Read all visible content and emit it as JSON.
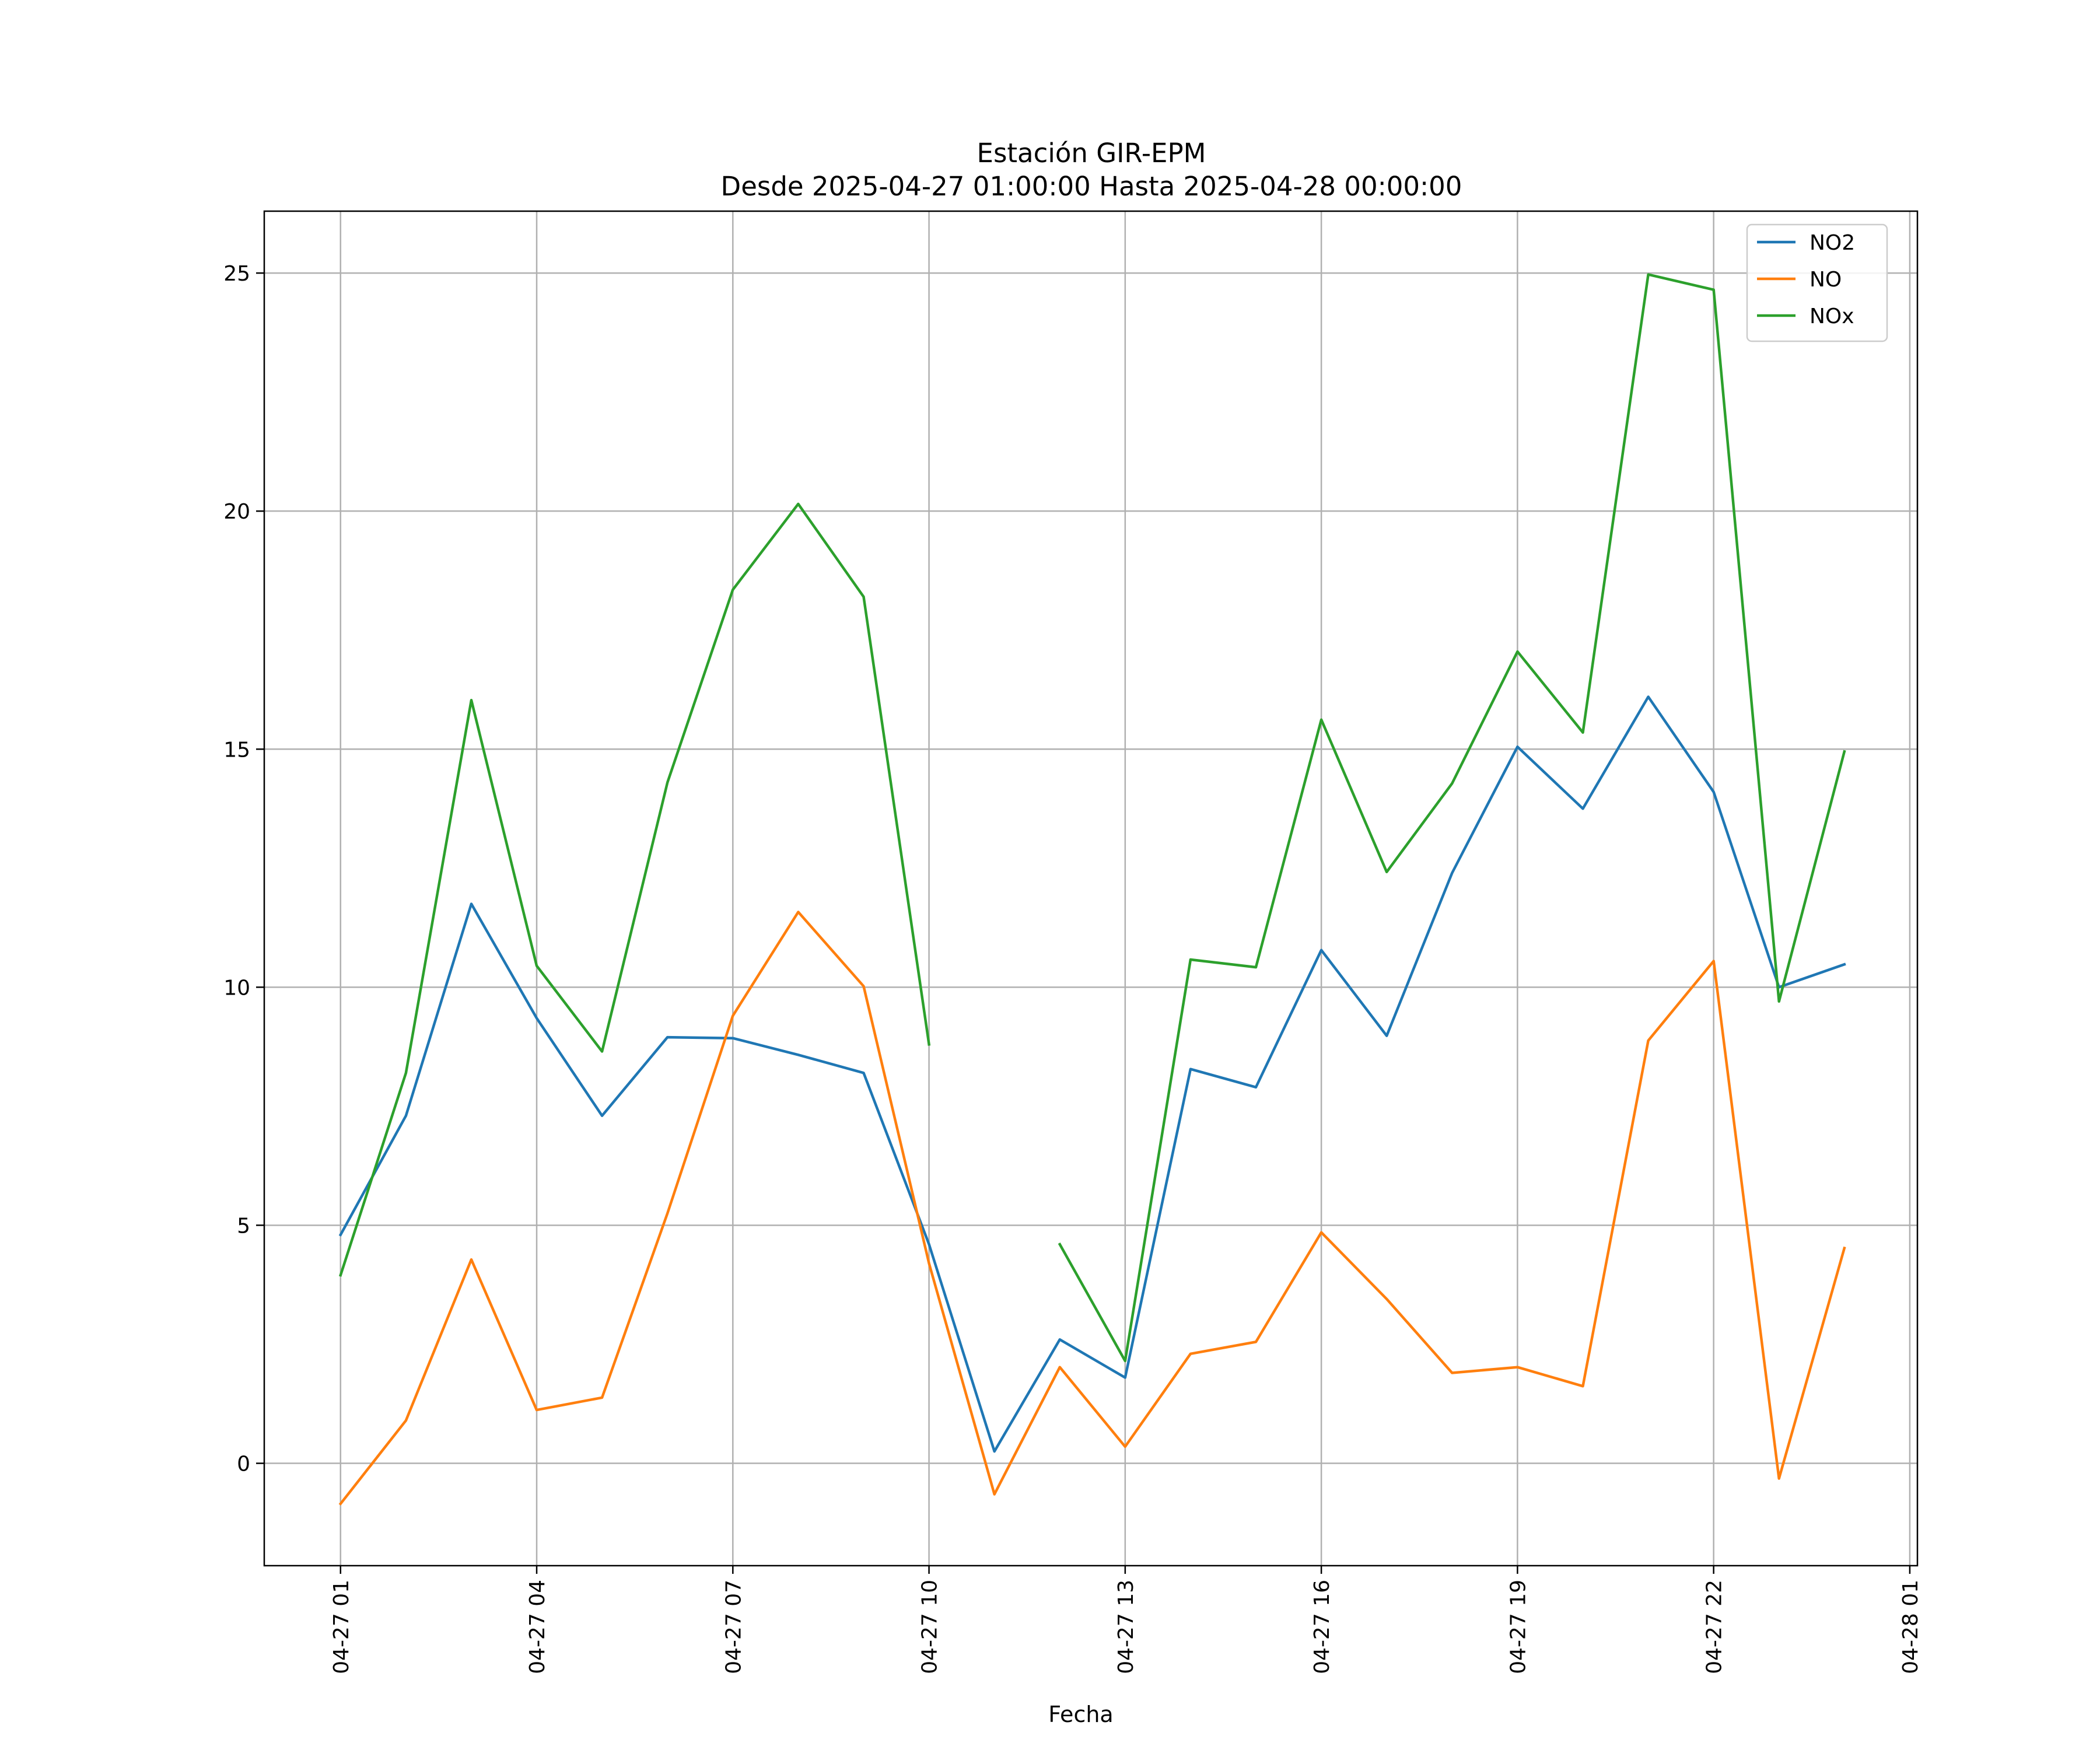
{
  "chart_data": {
    "type": "line",
    "title_line1": "Estación GIR-EPM",
    "title_line2": "Desde 2025-04-27 01:00:00 Hasta 2025-04-28 00:00:00",
    "xlabel": "Fecha",
    "ylabel": "",
    "x": [
      "2025-04-27 01:00",
      "2025-04-27 02:00",
      "2025-04-27 03:00",
      "2025-04-27 04:00",
      "2025-04-27 05:00",
      "2025-04-27 06:00",
      "2025-04-27 07:00",
      "2025-04-27 08:00",
      "2025-04-27 09:00",
      "2025-04-27 10:00",
      "2025-04-27 11:00",
      "2025-04-27 12:00",
      "2025-04-27 13:00",
      "2025-04-27 14:00",
      "2025-04-27 15:00",
      "2025-04-27 16:00",
      "2025-04-27 17:00",
      "2025-04-27 18:00",
      "2025-04-27 19:00",
      "2025-04-27 20:00",
      "2025-04-27 21:00",
      "2025-04-27 22:00",
      "2025-04-27 23:00",
      "2025-04-28 00:00"
    ],
    "x_ticks": [
      {
        "label": "04-27 01",
        "value": "2025-04-27 01:00"
      },
      {
        "label": "04-27 04",
        "value": "2025-04-27 04:00"
      },
      {
        "label": "04-27 07",
        "value": "2025-04-27 07:00"
      },
      {
        "label": "04-27 10",
        "value": "2025-04-27 10:00"
      },
      {
        "label": "04-27 13",
        "value": "2025-04-27 13:00"
      },
      {
        "label": "04-27 16",
        "value": "2025-04-27 16:00"
      },
      {
        "label": "04-27 19",
        "value": "2025-04-27 19:00"
      },
      {
        "label": "04-27 22",
        "value": "2025-04-27 22:00"
      },
      {
        "label": "04-28 01",
        "value": "2025-04-28 01:00"
      }
    ],
    "xlim": [
      "2025-04-26 23:50",
      "2025-04-28 01:07"
    ],
    "y_ticks": [
      0,
      5,
      10,
      15,
      20,
      25
    ],
    "ylim": [
      -2.15,
      26.3
    ],
    "grid": true,
    "legend_position": "top-right",
    "series": [
      {
        "name": "NO2",
        "color": "#1f77b4",
        "values": [
          4.8,
          7.3,
          11.75,
          9.35,
          7.3,
          8.95,
          8.93,
          8.58,
          8.2,
          4.6,
          0.25,
          2.6,
          1.8,
          8.28,
          7.9,
          10.78,
          8.98,
          12.4,
          15.05,
          13.75,
          16.1,
          14.1,
          10.0,
          10.48
        ]
      },
      {
        "name": "NO",
        "color": "#ff7f0e",
        "values": [
          -0.85,
          0.9,
          4.28,
          1.12,
          1.38,
          5.25,
          9.4,
          11.58,
          10.02,
          4.2,
          -0.65,
          2.02,
          0.35,
          2.3,
          2.55,
          4.85,
          3.45,
          1.9,
          2.02,
          1.62,
          8.88,
          10.55,
          -0.32,
          4.52
        ]
      },
      {
        "name": "NOx",
        "color": "#2ca02c",
        "values": [
          3.95,
          8.2,
          16.03,
          10.45,
          8.65,
          14.3,
          18.35,
          20.15,
          18.2,
          8.8,
          null,
          4.6,
          2.15,
          10.58,
          10.42,
          15.62,
          12.42,
          14.28,
          17.05,
          15.35,
          24.97,
          24.65,
          9.7,
          14.95
        ]
      }
    ]
  }
}
